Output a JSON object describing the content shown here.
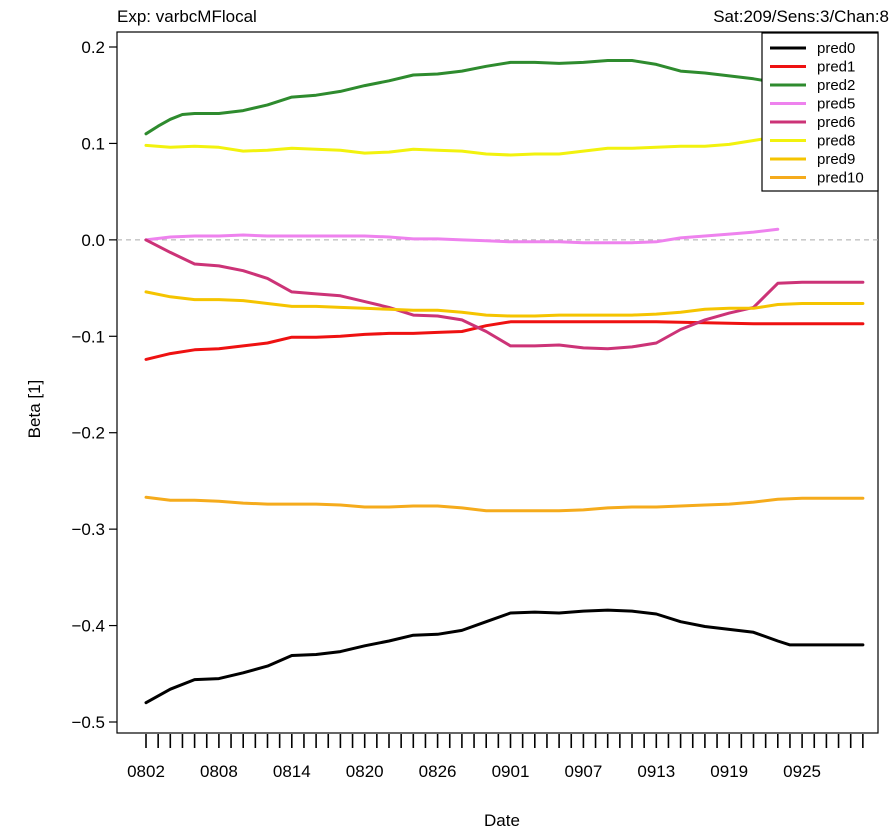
{
  "chart_data": {
    "type": "line",
    "title_left": "Exp: varbcMFlocal",
    "title_right": "Sat:209/Sens:3/Chan:8",
    "xlabel": "Date",
    "ylabel": "Beta [1]",
    "ylim": [
      -0.5,
      0.2
    ],
    "yticks": [
      {
        "value": -0.5,
        "label": "−0.5"
      },
      {
        "value": -0.4,
        "label": "−0.4"
      },
      {
        "value": -0.3,
        "label": "−0.3"
      },
      {
        "value": -0.2,
        "label": "−0.2"
      },
      {
        "value": -0.1,
        "label": "−0.1"
      },
      {
        "value": 0.0,
        "label": "0.0"
      },
      {
        "value": 0.1,
        "label": "0.1"
      },
      {
        "value": 0.2,
        "label": "0.2"
      }
    ],
    "x_dates": [
      "0802",
      "0803",
      "0804",
      "0805",
      "0806",
      "0807",
      "0808",
      "0809",
      "0810",
      "0811",
      "0812",
      "0813",
      "0814",
      "0815",
      "0816",
      "0817",
      "0818",
      "0819",
      "0820",
      "0821",
      "0822",
      "0823",
      "0824",
      "0825",
      "0826",
      "0827",
      "0828",
      "0829",
      "0830",
      "0831",
      "0901",
      "0902",
      "0903",
      "0904",
      "0905",
      "0906",
      "0907",
      "0908",
      "0909",
      "0910",
      "0911",
      "0912",
      "0913",
      "0914",
      "0915",
      "0916",
      "0917",
      "0918",
      "0919",
      "0920",
      "0921",
      "0922",
      "0923",
      "0924",
      "0925",
      "0926",
      "0927",
      "0928",
      "0929",
      "0930"
    ],
    "x_ticklabels": [
      "0802",
      "0808",
      "0814",
      "0820",
      "0826",
      "0901",
      "0907",
      "0913",
      "0919",
      "0925"
    ],
    "grid": false,
    "reference_line": 0.0,
    "legend_position": "top-right",
    "series": [
      {
        "name": "pred0",
        "color": "#000000",
        "points": [
          [
            "0802",
            -0.48
          ],
          [
            "0804",
            -0.466
          ],
          [
            "0806",
            -0.456
          ],
          [
            "0808",
            -0.455
          ],
          [
            "0810",
            -0.449
          ],
          [
            "0812",
            -0.442
          ],
          [
            "0814",
            -0.431
          ],
          [
            "0816",
            -0.43
          ],
          [
            "0818",
            -0.427
          ],
          [
            "0820",
            -0.421
          ],
          [
            "0822",
            -0.416
          ],
          [
            "0824",
            -0.41
          ],
          [
            "0826",
            -0.409
          ],
          [
            "0828",
            -0.405
          ],
          [
            "0830",
            -0.396
          ],
          [
            "0901",
            -0.387
          ],
          [
            "0903",
            -0.386
          ],
          [
            "0905",
            -0.387
          ],
          [
            "0907",
            -0.385
          ],
          [
            "0909",
            -0.384
          ],
          [
            "0911",
            -0.385
          ],
          [
            "0913",
            -0.388
          ],
          [
            "0915",
            -0.396
          ],
          [
            "0917",
            -0.401
          ],
          [
            "0919",
            -0.404
          ],
          [
            "0921",
            -0.407
          ],
          [
            "0923",
            -0.416
          ],
          [
            "0924",
            -0.42
          ],
          [
            "0930",
            -0.42
          ]
        ]
      },
      {
        "name": "pred1",
        "color": "#ee1111",
        "points": [
          [
            "0802",
            -0.124
          ],
          [
            "0804",
            -0.118
          ],
          [
            "0806",
            -0.114
          ],
          [
            "0808",
            -0.113
          ],
          [
            "0810",
            -0.11
          ],
          [
            "0812",
            -0.107
          ],
          [
            "0814",
            -0.101
          ],
          [
            "0816",
            -0.101
          ],
          [
            "0818",
            -0.1
          ],
          [
            "0820",
            -0.098
          ],
          [
            "0822",
            -0.097
          ],
          [
            "0824",
            -0.097
          ],
          [
            "0826",
            -0.096
          ],
          [
            "0828",
            -0.095
          ],
          [
            "0830",
            -0.089
          ],
          [
            "0901",
            -0.085
          ],
          [
            "0905",
            -0.085
          ],
          [
            "0909",
            -0.085
          ],
          [
            "0913",
            -0.085
          ],
          [
            "0917",
            -0.086
          ],
          [
            "0921",
            -0.087
          ],
          [
            "0925",
            -0.087
          ],
          [
            "0930",
            -0.087
          ]
        ]
      },
      {
        "name": "pred2",
        "color": "#2e8b2e",
        "points": [
          [
            "0802",
            0.11
          ],
          [
            "0803",
            0.118
          ],
          [
            "0804",
            0.125
          ],
          [
            "0805",
            0.13
          ],
          [
            "0806",
            0.131
          ],
          [
            "0808",
            0.131
          ],
          [
            "0810",
            0.134
          ],
          [
            "0812",
            0.14
          ],
          [
            "0814",
            0.148
          ],
          [
            "0816",
            0.15
          ],
          [
            "0818",
            0.154
          ],
          [
            "0820",
            0.16
          ],
          [
            "0822",
            0.165
          ],
          [
            "0824",
            0.171
          ],
          [
            "0826",
            0.172
          ],
          [
            "0828",
            0.175
          ],
          [
            "0830",
            0.18
          ],
          [
            "0901",
            0.184
          ],
          [
            "0903",
            0.184
          ],
          [
            "0905",
            0.183
          ],
          [
            "0907",
            0.184
          ],
          [
            "0909",
            0.186
          ],
          [
            "0911",
            0.186
          ],
          [
            "0913",
            0.182
          ],
          [
            "0915",
            0.175
          ],
          [
            "0917",
            0.173
          ],
          [
            "0919",
            0.17
          ],
          [
            "0921",
            0.167
          ],
          [
            "0922",
            0.165
          ]
        ]
      },
      {
        "name": "pred5",
        "color": "#ee82ee",
        "points": [
          [
            "0802",
            0.0
          ],
          [
            "0804",
            0.003
          ],
          [
            "0806",
            0.004
          ],
          [
            "0808",
            0.004
          ],
          [
            "0810",
            0.005
          ],
          [
            "0812",
            0.004
          ],
          [
            "0814",
            0.004
          ],
          [
            "0816",
            0.004
          ],
          [
            "0818",
            0.004
          ],
          [
            "0820",
            0.004
          ],
          [
            "0822",
            0.003
          ],
          [
            "0824",
            0.001
          ],
          [
            "0826",
            0.001
          ],
          [
            "0828",
            0.0
          ],
          [
            "0830",
            -0.001
          ],
          [
            "0901",
            -0.002
          ],
          [
            "0903",
            -0.002
          ],
          [
            "0905",
            -0.002
          ],
          [
            "0907",
            -0.003
          ],
          [
            "0909",
            -0.003
          ],
          [
            "0911",
            -0.003
          ],
          [
            "0913",
            -0.002
          ],
          [
            "0915",
            0.002
          ],
          [
            "0917",
            0.004
          ],
          [
            "0919",
            0.006
          ],
          [
            "0921",
            0.008
          ],
          [
            "0923",
            0.011
          ]
        ]
      },
      {
        "name": "pred6",
        "color": "#cc3377",
        "points": [
          [
            "0802",
            0.0
          ],
          [
            "0804",
            -0.013
          ],
          [
            "0806",
            -0.025
          ],
          [
            "0808",
            -0.027
          ],
          [
            "0810",
            -0.032
          ],
          [
            "0812",
            -0.04
          ],
          [
            "0814",
            -0.054
          ],
          [
            "0816",
            -0.056
          ],
          [
            "0818",
            -0.058
          ],
          [
            "0820",
            -0.064
          ],
          [
            "0822",
            -0.07
          ],
          [
            "0824",
            -0.078
          ],
          [
            "0826",
            -0.079
          ],
          [
            "0828",
            -0.083
          ],
          [
            "0830",
            -0.095
          ],
          [
            "0901",
            -0.11
          ],
          [
            "0903",
            -0.11
          ],
          [
            "0905",
            -0.109
          ],
          [
            "0907",
            -0.112
          ],
          [
            "0909",
            -0.113
          ],
          [
            "0911",
            -0.111
          ],
          [
            "0913",
            -0.107
          ],
          [
            "0915",
            -0.093
          ],
          [
            "0917",
            -0.083
          ],
          [
            "0919",
            -0.076
          ],
          [
            "0921",
            -0.07
          ],
          [
            "0923",
            -0.045
          ],
          [
            "0925",
            -0.044
          ],
          [
            "0930",
            -0.044
          ]
        ]
      },
      {
        "name": "pred8",
        "color": "#f2f20e",
        "points": [
          [
            "0802",
            0.098
          ],
          [
            "0804",
            0.096
          ],
          [
            "0806",
            0.097
          ],
          [
            "0808",
            0.096
          ],
          [
            "0810",
            0.092
          ],
          [
            "0812",
            0.093
          ],
          [
            "0814",
            0.095
          ],
          [
            "0816",
            0.094
          ],
          [
            "0818",
            0.093
          ],
          [
            "0820",
            0.09
          ],
          [
            "0822",
            0.091
          ],
          [
            "0824",
            0.094
          ],
          [
            "0826",
            0.093
          ],
          [
            "0828",
            0.092
          ],
          [
            "0830",
            0.089
          ],
          [
            "0901",
            0.088
          ],
          [
            "0903",
            0.089
          ],
          [
            "0905",
            0.089
          ],
          [
            "0907",
            0.092
          ],
          [
            "0909",
            0.095
          ],
          [
            "0911",
            0.095
          ],
          [
            "0913",
            0.096
          ],
          [
            "0915",
            0.097
          ],
          [
            "0917",
            0.097
          ],
          [
            "0919",
            0.099
          ],
          [
            "0921",
            0.103
          ],
          [
            "0922",
            0.105
          ]
        ]
      },
      {
        "name": "pred9",
        "color": "#f5c400",
        "points": [
          [
            "0802",
            -0.054
          ],
          [
            "0804",
            -0.059
          ],
          [
            "0806",
            -0.062
          ],
          [
            "0808",
            -0.062
          ],
          [
            "0810",
            -0.063
          ],
          [
            "0812",
            -0.066
          ],
          [
            "0814",
            -0.069
          ],
          [
            "0816",
            -0.069
          ],
          [
            "0818",
            -0.07
          ],
          [
            "0820",
            -0.071
          ],
          [
            "0822",
            -0.072
          ],
          [
            "0824",
            -0.073
          ],
          [
            "0826",
            -0.073
          ],
          [
            "0828",
            -0.075
          ],
          [
            "0830",
            -0.078
          ],
          [
            "0901",
            -0.079
          ],
          [
            "0903",
            -0.079
          ],
          [
            "0905",
            -0.078
          ],
          [
            "0907",
            -0.078
          ],
          [
            "0909",
            -0.078
          ],
          [
            "0911",
            -0.078
          ],
          [
            "0913",
            -0.077
          ],
          [
            "0915",
            -0.075
          ],
          [
            "0917",
            -0.072
          ],
          [
            "0919",
            -0.071
          ],
          [
            "0921",
            -0.071
          ],
          [
            "0923",
            -0.067
          ],
          [
            "0925",
            -0.066
          ],
          [
            "0930",
            -0.066
          ]
        ]
      },
      {
        "name": "pred10",
        "color": "#f5ab1c",
        "points": [
          [
            "0802",
            -0.267
          ],
          [
            "0804",
            -0.27
          ],
          [
            "0806",
            -0.27
          ],
          [
            "0808",
            -0.271
          ],
          [
            "0810",
            -0.273
          ],
          [
            "0812",
            -0.274
          ],
          [
            "0814",
            -0.274
          ],
          [
            "0816",
            -0.274
          ],
          [
            "0818",
            -0.275
          ],
          [
            "0820",
            -0.277
          ],
          [
            "0822",
            -0.277
          ],
          [
            "0824",
            -0.276
          ],
          [
            "0826",
            -0.276
          ],
          [
            "0828",
            -0.278
          ],
          [
            "0830",
            -0.281
          ],
          [
            "0901",
            -0.281
          ],
          [
            "0903",
            -0.281
          ],
          [
            "0905",
            -0.281
          ],
          [
            "0907",
            -0.28
          ],
          [
            "0909",
            -0.278
          ],
          [
            "0911",
            -0.277
          ],
          [
            "0913",
            -0.277
          ],
          [
            "0915",
            -0.276
          ],
          [
            "0917",
            -0.275
          ],
          [
            "0919",
            -0.274
          ],
          [
            "0921",
            -0.272
          ],
          [
            "0923",
            -0.269
          ],
          [
            "0925",
            -0.268
          ],
          [
            "0930",
            -0.268
          ]
        ]
      }
    ]
  }
}
